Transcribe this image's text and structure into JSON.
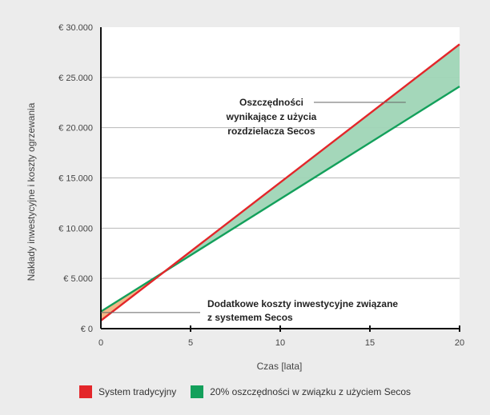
{
  "chart_data": {
    "type": "line",
    "xlabel": "Czas [lata]",
    "ylabel": "Nakłady inwestycyjne i koszty ogrzewania",
    "xlim": [
      0,
      20
    ],
    "ylim": [
      0,
      30000
    ],
    "x_ticks": [
      0,
      5,
      10,
      15,
      20
    ],
    "x_tick_labels": [
      "0",
      "5",
      "10",
      "15",
      "20"
    ],
    "y_ticks": [
      0,
      5000,
      10000,
      15000,
      20000,
      25000,
      30000
    ],
    "y_tick_labels": [
      "€ 0",
      "€ 5.000",
      "€ 10.000",
      "€ 15.000",
      "€ 20.000",
      "€ 25.000",
      "€ 30.000"
    ],
    "grid": "horizontal",
    "series": [
      {
        "name": "System tradycyjny",
        "color": "#e3262a",
        "x": [
          0,
          20
        ],
        "y": [
          800,
          28300
        ]
      },
      {
        "name": "20% oszczędności w związku z użyciem Secos",
        "color": "#13a05b",
        "x": [
          0,
          20
        ],
        "y": [
          1700,
          24100
        ]
      }
    ],
    "fill_between": {
      "color": "#9fd5b6",
      "from_x": 3.3,
      "to_x": 20
    },
    "annotations": [
      {
        "text": "Oszczędności wynikające z użycia rozdzielacza Secos",
        "x": 17,
        "y": 22500
      },
      {
        "text": "Dodatkowe koszty inwestycyjne związane z systemem Secos",
        "x": 0,
        "y": 1600
      }
    ],
    "legend_position": "bottom"
  }
}
